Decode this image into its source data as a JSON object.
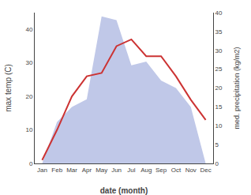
{
  "chart_data": {
    "type": "line",
    "xlabel": "date (month)",
    "ylabel": "max temp (C)",
    "y2label": "med. precipitation (kg/m2)",
    "categories": [
      "Jan",
      "Feb",
      "Mar",
      "Apr",
      "May",
      "Jun",
      "Jul",
      "Aug",
      "Sep",
      "Oct",
      "Nov",
      "Dec"
    ],
    "series": [
      {
        "type": "area",
        "color": "#c0c8e8",
        "axis": "y2",
        "values": [
          0,
          11,
          15,
          17,
          39,
          38,
          26,
          27,
          22,
          20,
          15,
          0
        ]
      },
      {
        "type": "line",
        "color": "#cc3333",
        "values": [
          1,
          10,
          20,
          26,
          27,
          35,
          37,
          32,
          32,
          26,
          19,
          13
        ]
      }
    ],
    "ylim": [
      0,
      45
    ],
    "yticks": [
      0,
      10,
      20,
      30,
      40
    ],
    "y2lim": [
      0,
      40
    ],
    "y2ticks": [
      0,
      5,
      10,
      15,
      20,
      25,
      30,
      35,
      40
    ],
    "grid": false
  }
}
